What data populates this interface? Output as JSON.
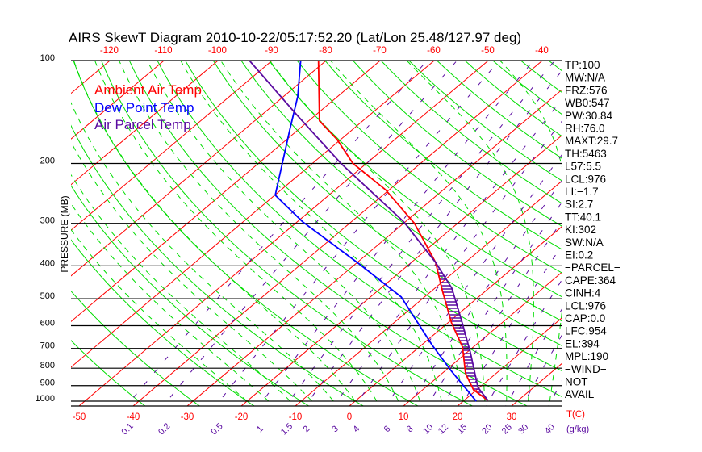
{
  "title": "AIRS SkewT Diagram 2010-10-22/05:17:52.20 (Lat/Lon 25.48/127.97 deg)",
  "colors": {
    "ambient": "#ff0000",
    "dewpoint": "#0000ff",
    "parcel": "#5a0aa0",
    "isotherm": "#ff0000",
    "dry_adiabat": "#00dd00",
    "moist_adiabat": "#00dd00",
    "mixing_ratio": "#5a0aa0",
    "pressure_line": "#000000"
  },
  "legend": [
    {
      "label": "Ambient Air Temp",
      "color": "#ff0000"
    },
    {
      "label": "Dew Point Temp",
      "color": "#0000ff"
    },
    {
      "label": "Air Parcel Temp",
      "color": "#5a0aa0"
    }
  ],
  "side_panel": [
    "TP:100",
    "MW:N/A",
    "FRZ:576",
    "WB0:547",
    "PW:30.84",
    "RH:76.0",
    "MAXT:29.7",
    "TH:5463",
    "L57:5.5",
    "LCL:976",
    "LI:−1.7",
    "SI:2.7",
    "TT:40.1",
    "KI:302",
    "SW:N/A",
    "EI:0.2",
    "−PARCEL−",
    "CAPE:364",
    "CINH:4",
    "LCL:976",
    "CAP:0.0",
    "LFC:954",
    "EL:394",
    "MPL:190",
    "−WIND−",
    "NOT",
    "AVAIL"
  ],
  "chart_data": {
    "type": "line",
    "subtype": "skew-t log-p",
    "ylabel": "PRESSURE (MB)",
    "xlabel": "T(C)",
    "mixing_ratio_unit": "(g/kg)",
    "pressure_ticks": [
      100,
      200,
      300,
      400,
      500,
      600,
      700,
      800,
      900,
      1000
    ],
    "top_temperature_ticks": [
      -120,
      -110,
      -100,
      -90,
      -80,
      -70,
      -60,
      -50,
      -40
    ],
    "bottom_temperature_ticks": [
      -50,
      -40,
      -30,
      -20,
      -10,
      0,
      10,
      20,
      30
    ],
    "mixing_ratio_ticks": [
      "0.1",
      "0.2",
      "0.5",
      "1",
      "1.5",
      "2",
      "3",
      "4",
      "6",
      "8",
      "10",
      "12",
      "15",
      "20",
      "25",
      "30",
      "40"
    ],
    "ylim": [
      100,
      1030
    ],
    "series": [
      {
        "name": "Ambient Air Temp",
        "color": "#ff0000",
        "points": [
          [
            100,
            -81.3
          ],
          [
            150,
            -68
          ],
          [
            170,
            -60.7
          ],
          [
            200,
            -52.5
          ],
          [
            239,
            -40.7
          ],
          [
            300,
            -28
          ],
          [
            391,
            -15.5
          ],
          [
            473,
            -8.1
          ],
          [
            589,
            0.7
          ],
          [
            693,
            8
          ],
          [
            830,
            14.4
          ],
          [
            926,
            19.4
          ],
          [
            995,
            24.4
          ]
        ]
      },
      {
        "name": "Dew Point Temp",
        "color": "#0000ff",
        "points": [
          [
            100,
            -84.6
          ],
          [
            127,
            -77.4
          ],
          [
            159,
            -71.6
          ],
          [
            248,
            -59.9
          ],
          [
            297,
            -49
          ],
          [
            395,
            -29.3
          ],
          [
            494,
            -14.3
          ],
          [
            682,
            1.8
          ],
          [
            817,
            11.3
          ],
          [
            1000,
            22.4
          ]
        ]
      },
      {
        "name": "Air Parcel Temp",
        "color": "#5a0aa0",
        "points": [
          [
            100,
            -94
          ],
          [
            144,
            -73.5
          ],
          [
            200,
            -54.7
          ],
          [
            297,
            -30.3
          ],
          [
            391,
            -15.5
          ],
          [
            465,
            -6.9
          ],
          [
            579,
            2
          ],
          [
            720,
            10.7
          ],
          [
            911,
            19.7
          ],
          [
            995,
            24.4
          ]
        ]
      }
    ]
  }
}
